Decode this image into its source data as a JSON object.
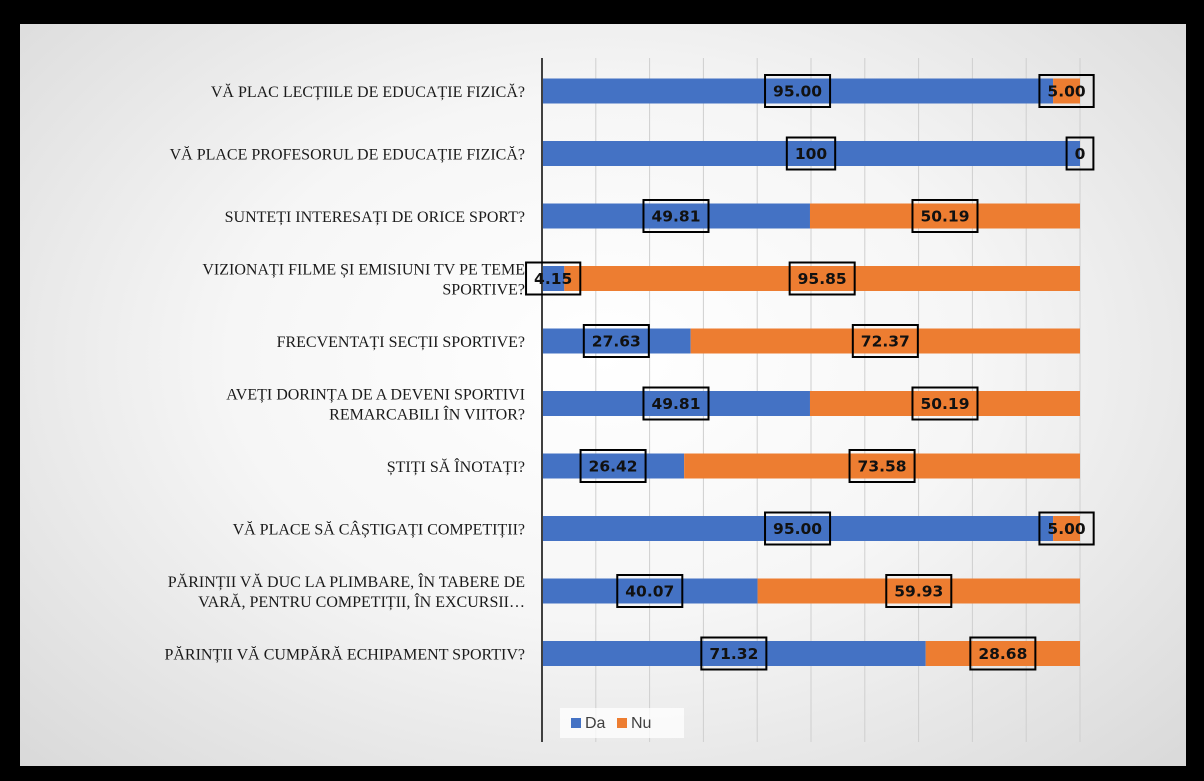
{
  "chart_data": {
    "type": "bar",
    "orientation": "horizontal",
    "stacked": "100%",
    "categories": [
      [
        "VĂ PLAC LECȚIILE DE EDUCAȚIE FIZICĂ?"
      ],
      [
        "VĂ PLACE PROFESORUL DE EDUCAȚIE FIZICĂ?"
      ],
      [
        "SUNTEȚI INTERESAȚI DE ORICE SPORT?"
      ],
      [
        "VIZIONAȚI FILME ȘI EMISIUNI TV PE TEME",
        "SPORTIVE?"
      ],
      [
        "FRECVENTAȚI SECȚII SPORTIVE?"
      ],
      [
        "AVEȚI DORINȚA DE A DEVENI SPORTIVI",
        "REMARCABILI ÎN VIITOR?"
      ],
      [
        "ȘTIȚI SĂ ÎNOTAȚI?"
      ],
      [
        "VĂ PLACE SĂ CÂȘTIGAȚI COMPETIȚII?"
      ],
      [
        "PĂRINȚII VĂ DUC LA PLIMBARE, ÎN TABERE DE",
        "VARĂ, PENTRU COMPETIȚII, ÎN EXCURSII…"
      ],
      [
        "PĂRINȚII VĂ CUMPĂRĂ ECHIPAMENT SPORTIV?"
      ]
    ],
    "series": [
      {
        "name": "Da",
        "color": "#4472C4",
        "values": [
          95.0,
          100,
          49.81,
          4.15,
          27.63,
          49.81,
          26.42,
          95.0,
          40.07,
          71.32
        ],
        "labels": [
          "95.00",
          "100",
          "49.81",
          "4.15",
          "27.63",
          "49.81",
          "26.42",
          "95.00",
          "40.07",
          "71.32"
        ]
      },
      {
        "name": "Nu",
        "color": "#ED7D31",
        "values": [
          5.0,
          0,
          50.19,
          95.85,
          72.37,
          50.19,
          73.58,
          5.0,
          59.93,
          28.68
        ],
        "labels": [
          "5.00",
          "0",
          "50.19",
          "95.85",
          "72.37",
          "50.19",
          "73.58",
          "5.00",
          "59.93",
          "28.68"
        ]
      }
    ],
    "xlim": [
      0,
      100
    ],
    "grid": true,
    "legend": "bottom-left"
  }
}
